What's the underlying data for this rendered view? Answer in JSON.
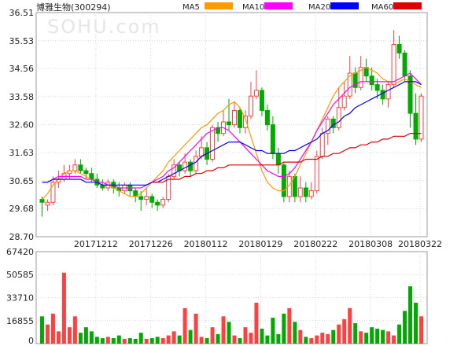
{
  "chart_data": [
    {
      "type": "candlestick",
      "title": "博雅生物(300294)",
      "watermark": "SOHU.com",
      "legend": [
        {
          "name": "MA5",
          "color": "#ff9900"
        },
        {
          "name": "MA10",
          "color": "#ff00ff"
        },
        {
          "name": "MA20",
          "color": "#0000ff"
        },
        {
          "name": "MA60",
          "color": "#dd0000"
        }
      ],
      "ylim": [
        28.7,
        36.51
      ],
      "y_ticks": [
        "36.51",
        "35.53",
        "34.56",
        "33.58",
        "32.60",
        "31.63",
        "30.65",
        "29.68",
        "28.70"
      ],
      "x_tick_labels": [
        "20171212",
        "20171226",
        "20180112",
        "20180129",
        "20180222",
        "20180308",
        "20180322"
      ],
      "up_color": "#ff4040",
      "down_color": "#00aa00",
      "candles": [
        [
          30.0,
          29.9,
          30.1,
          29.4
        ],
        [
          29.8,
          29.9,
          30.0,
          29.6
        ],
        [
          29.9,
          30.6,
          30.8,
          29.8
        ],
        [
          30.6,
          30.7,
          31.0,
          30.4
        ],
        [
          30.7,
          30.9,
          31.2,
          30.6
        ],
        [
          30.9,
          31.0,
          31.2,
          30.7
        ],
        [
          31.0,
          31.2,
          31.4,
          30.9
        ],
        [
          31.2,
          31.0,
          31.4,
          30.9
        ],
        [
          31.0,
          30.9,
          31.1,
          30.7
        ],
        [
          30.9,
          30.7,
          31.1,
          30.6
        ],
        [
          30.7,
          30.5,
          30.9,
          30.4
        ],
        [
          30.5,
          30.4,
          30.7,
          30.3
        ],
        [
          30.4,
          30.6,
          30.7,
          30.3
        ],
        [
          30.6,
          30.4,
          30.7,
          30.2
        ],
        [
          30.4,
          30.3,
          30.6,
          30.1
        ],
        [
          30.3,
          30.5,
          30.6,
          30.2
        ],
        [
          30.5,
          30.3,
          30.6,
          30.1
        ],
        [
          30.3,
          30.1,
          30.4,
          29.9
        ],
        [
          30.1,
          30.0,
          30.3,
          29.6
        ],
        [
          30.0,
          30.1,
          30.4,
          29.8
        ],
        [
          30.1,
          29.9,
          30.2,
          29.7
        ],
        [
          29.9,
          29.8,
          30.0,
          29.6
        ],
        [
          29.8,
          30.0,
          30.1,
          29.7
        ],
        [
          30.0,
          30.8,
          30.9,
          29.9
        ],
        [
          30.8,
          31.2,
          31.4,
          30.7
        ],
        [
          31.2,
          31.0,
          31.3,
          30.8
        ],
        [
          31.0,
          31.3,
          31.6,
          30.9
        ],
        [
          31.3,
          31.0,
          31.4,
          30.8
        ],
        [
          31.0,
          31.5,
          31.7,
          30.9
        ],
        [
          31.5,
          31.8,
          32.2,
          31.4
        ],
        [
          31.8,
          31.4,
          32.0,
          31.2
        ],
        [
          31.4,
          32.5,
          32.6,
          31.3
        ],
        [
          32.5,
          32.3,
          32.7,
          32.0
        ],
        [
          32.3,
          32.7,
          33.1,
          32.2
        ],
        [
          32.7,
          32.6,
          33.5,
          32.4
        ],
        [
          32.6,
          33.1,
          33.4,
          32.5
        ],
        [
          33.1,
          32.5,
          33.2,
          32.3
        ],
        [
          32.5,
          32.9,
          33.1,
          32.3
        ],
        [
          32.9,
          33.6,
          34.1,
          32.8
        ],
        [
          33.6,
          33.8,
          34.5,
          33.5
        ],
        [
          33.8,
          33.1,
          33.9,
          32.9
        ],
        [
          33.1,
          32.6,
          33.3,
          32.4
        ],
        [
          32.6,
          31.6,
          32.9,
          31.4
        ],
        [
          31.6,
          31.2,
          31.8,
          30.9
        ],
        [
          31.2,
          30.1,
          31.3,
          29.9
        ],
        [
          30.1,
          30.8,
          31.0,
          29.9
        ],
        [
          30.8,
          30.1,
          30.9,
          29.9
        ],
        [
          30.1,
          30.4,
          30.8,
          29.9
        ],
        [
          30.4,
          30.1,
          30.6,
          29.9
        ],
        [
          30.1,
          30.3,
          30.6,
          30.0
        ],
        [
          30.3,
          31.5,
          31.7,
          30.2
        ],
        [
          31.5,
          32.3,
          32.5,
          31.4
        ],
        [
          32.3,
          32.8,
          32.9,
          31.9
        ],
        [
          32.8,
          32.5,
          32.9,
          32.3
        ],
        [
          32.5,
          33.2,
          33.9,
          32.4
        ],
        [
          33.2,
          33.6,
          34.1,
          33.1
        ],
        [
          33.6,
          34.4,
          35.0,
          33.5
        ],
        [
          34.4,
          33.9,
          34.6,
          33.7
        ],
        [
          33.9,
          34.6,
          35.0,
          33.8
        ],
        [
          34.6,
          34.3,
          34.9,
          34.1
        ],
        [
          34.3,
          34.0,
          34.6,
          33.8
        ],
        [
          34.0,
          33.8,
          34.2,
          33.5
        ],
        [
          33.8,
          33.5,
          34.0,
          33.3
        ],
        [
          33.5,
          34.0,
          34.1,
          33.2
        ],
        [
          34.0,
          35.4,
          35.9,
          33.9
        ],
        [
          35.4,
          35.1,
          35.7,
          34.9
        ],
        [
          35.1,
          34.3,
          35.2,
          34.1
        ],
        [
          34.3,
          33.0,
          34.5,
          32.5
        ],
        [
          33.0,
          32.1,
          33.7,
          31.9
        ],
        [
          32.1,
          33.6,
          33.7,
          32.0
        ]
      ],
      "ma5": [
        30.0,
        30.2,
        30.5,
        30.7,
        30.9,
        31.0,
        31.0,
        30.9,
        30.8,
        30.7,
        30.6,
        30.6,
        30.5,
        30.4,
        30.3,
        30.2,
        30.1,
        30.1,
        30.2,
        30.4,
        30.6,
        30.8,
        31.0,
        31.3,
        31.5,
        31.7,
        31.9,
        32.1,
        32.3,
        32.5,
        32.6,
        32.8,
        33.0,
        33.1,
        33.3,
        33.4,
        33.2,
        32.8,
        32.2,
        31.6,
        31.0,
        30.6,
        30.4,
        30.3,
        30.3,
        30.5,
        30.8,
        31.2,
        31.6,
        32.0,
        32.4,
        32.8,
        33.2,
        33.6,
        33.9,
        34.1,
        34.3,
        34.4,
        34.5,
        34.6,
        34.5,
        34.4,
        34.2,
        34.1,
        34.0,
        34.1,
        34.2,
        34.1,
        34.0,
        33.9
      ],
      "ma10": [
        30.6,
        30.6,
        30.7,
        30.8,
        30.8,
        30.8,
        30.8,
        30.8,
        30.7,
        30.7,
        30.6,
        30.6,
        30.5,
        30.5,
        30.4,
        30.4,
        30.4,
        30.4,
        30.4,
        30.5,
        30.6,
        30.7,
        30.8,
        31.0,
        31.1,
        31.3,
        31.5,
        31.7,
        31.9,
        32.1,
        32.3,
        32.4,
        32.5,
        32.5,
        32.4,
        32.2,
        32.0,
        31.8,
        31.6,
        31.4,
        31.2,
        31.0,
        30.9,
        30.8,
        30.8,
        30.9,
        31.1,
        31.4,
        31.7,
        32.0,
        32.4,
        32.7,
        33.0,
        33.3,
        33.5,
        33.7,
        33.9,
        34.0,
        34.1,
        34.1,
        34.1,
        34.1,
        34.1,
        34.1,
        34.1,
        34.2,
        34.3,
        34.4,
        34.2,
        34.0
      ],
      "ma20": [
        30.6,
        30.6,
        30.7,
        30.7,
        30.7,
        30.7,
        30.7,
        30.7,
        30.6,
        30.6,
        30.6,
        30.5,
        30.5,
        30.5,
        30.5,
        30.5,
        30.5,
        30.5,
        30.5,
        30.5,
        30.6,
        30.6,
        30.7,
        30.8,
        30.9,
        31.0,
        31.1,
        31.2,
        31.3,
        31.5,
        31.6,
        31.7,
        31.8,
        31.9,
        32.0,
        32.0,
        32.0,
        31.9,
        31.8,
        31.7,
        31.7,
        31.6,
        31.6,
        31.6,
        31.6,
        31.7,
        31.7,
        31.8,
        31.9,
        32.0,
        32.1,
        32.3,
        32.4,
        32.6,
        32.7,
        32.9,
        33.0,
        33.2,
        33.3,
        33.4,
        33.5,
        33.6,
        33.7,
        33.8,
        33.9,
        34.0,
        34.1,
        34.1,
        34.1,
        34.0
      ],
      "ma60": [
        null,
        null,
        null,
        null,
        null,
        null,
        null,
        null,
        null,
        null,
        null,
        null,
        null,
        null,
        null,
        null,
        null,
        null,
        null,
        null,
        30.6,
        30.6,
        30.6,
        30.7,
        30.7,
        30.7,
        30.8,
        30.8,
        30.9,
        30.9,
        31.0,
        31.0,
        31.1,
        31.1,
        31.2,
        31.2,
        31.2,
        31.2,
        31.2,
        31.2,
        31.2,
        31.2,
        31.2,
        31.2,
        31.3,
        31.3,
        31.3,
        31.3,
        31.4,
        31.4,
        31.4,
        31.5,
        31.5,
        31.6,
        31.6,
        31.7,
        31.8,
        31.8,
        31.9,
        31.9,
        32.0,
        32.0,
        32.1,
        32.1,
        32.2,
        32.2,
        32.2,
        32.3,
        32.3,
        32.3
      ]
    },
    {
      "type": "bar",
      "title": "volume",
      "ylim": [
        0,
        67420
      ],
      "y_ticks": [
        "67420",
        "50585",
        "33710",
        "16855",
        "0"
      ],
      "values": [
        20000,
        14000,
        22000,
        9000,
        52000,
        12000,
        20000,
        8000,
        12000,
        9000,
        5000,
        4000,
        5000,
        4000,
        6000,
        3500,
        4000,
        3500,
        8000,
        3500,
        4000,
        5000,
        4000,
        6000,
        9000,
        6000,
        26000,
        10000,
        22000,
        5000,
        4000,
        12000,
        7000,
        20000,
        16000,
        6000,
        4000,
        12000,
        8000,
        30000,
        11000,
        6000,
        19000,
        7000,
        22000,
        26000,
        16000,
        10000,
        5000,
        4000,
        6000,
        8000,
        7000,
        10000,
        14000,
        18000,
        26000,
        15000,
        9000,
        8000,
        12000,
        11000,
        10000,
        9000,
        6000,
        14000,
        24000,
        42000,
        30000,
        20000
      ],
      "bar_colors": "same as candle direction"
    }
  ]
}
